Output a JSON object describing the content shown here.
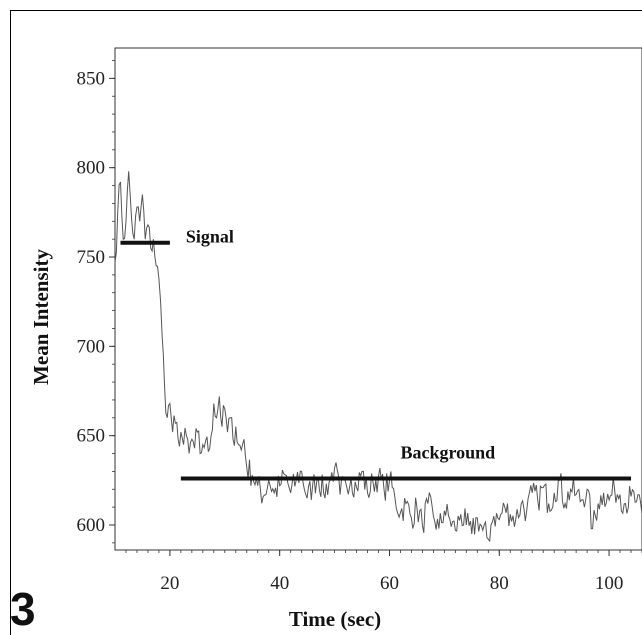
{
  "panel_label": "3",
  "chart_data": {
    "type": "line",
    "title": "",
    "xlabel": "Time (sec)",
    "ylabel": "Mean Intensity",
    "xlim": [
      10,
      106
    ],
    "ylim": [
      586,
      867
    ],
    "xticks": [
      "20",
      "40",
      "60",
      "80",
      "100"
    ],
    "yticks": [
      "600",
      "650",
      "700",
      "750",
      "800",
      "850"
    ],
    "grid": false,
    "legend": "none",
    "line_color": "#555555",
    "series": [
      {
        "values": [
          [
            10.0,
            747
          ],
          [
            10.5,
            775
          ],
          [
            11.0,
            792
          ],
          [
            11.5,
            760
          ],
          [
            12.0,
            770
          ],
          [
            12.5,
            798
          ],
          [
            13.0,
            772
          ],
          [
            13.5,
            760
          ],
          [
            14.0,
            778
          ],
          [
            14.5,
            770
          ],
          [
            15.0,
            785
          ],
          [
            15.5,
            760
          ],
          [
            16.0,
            768
          ],
          [
            16.5,
            755
          ],
          [
            17.0,
            760
          ],
          [
            17.5,
            745
          ],
          [
            18.0,
            738
          ],
          [
            18.3,
            725
          ],
          [
            18.6,
            705
          ],
          [
            19.0,
            680
          ],
          [
            19.5,
            660
          ],
          [
            20.0,
            668
          ],
          [
            20.5,
            652
          ],
          [
            21.0,
            657
          ],
          [
            21.5,
            648
          ],
          [
            22.0,
            652
          ],
          [
            22.5,
            645
          ],
          [
            23.0,
            650
          ],
          [
            23.5,
            640
          ],
          [
            24.0,
            648
          ],
          [
            24.5,
            643
          ],
          [
            25.0,
            652
          ],
          [
            25.5,
            640
          ],
          [
            26.0,
            645
          ],
          [
            26.5,
            647
          ],
          [
            27.0,
            641
          ],
          [
            27.5,
            650
          ],
          [
            28.0,
            668
          ],
          [
            28.5,
            660
          ],
          [
            29.0,
            672
          ],
          [
            29.5,
            655
          ],
          [
            30.0,
            665
          ],
          [
            30.5,
            652
          ],
          [
            31.0,
            660
          ],
          [
            31.5,
            648
          ],
          [
            32.0,
            655
          ],
          [
            32.5,
            645
          ],
          [
            33.0,
            642
          ],
          [
            33.5,
            648
          ],
          [
            34.0,
            632
          ],
          [
            35.0,
            628
          ],
          [
            36.0,
            622
          ],
          [
            37.0,
            616
          ],
          [
            38.0,
            625
          ],
          [
            39.0,
            618
          ],
          [
            40.0,
            622
          ],
          [
            41.0,
            628
          ],
          [
            42.0,
            618
          ],
          [
            43.0,
            625
          ],
          [
            44.0,
            630
          ],
          [
            45.0,
            615
          ],
          [
            46.0,
            622
          ],
          [
            47.0,
            627
          ],
          [
            48.0,
            618
          ],
          [
            49.0,
            624
          ],
          [
            50.0,
            632
          ],
          [
            51.0,
            617
          ],
          [
            52.0,
            624
          ],
          [
            53.0,
            626
          ],
          [
            54.0,
            621
          ],
          [
            55.0,
            630
          ],
          [
            56.0,
            618
          ],
          [
            57.0,
            624
          ],
          [
            58.0,
            627
          ],
          [
            59.0,
            620
          ],
          [
            60.0,
            625
          ],
          [
            61.0,
            615
          ],
          [
            62.0,
            607
          ],
          [
            63.0,
            612
          ],
          [
            64.0,
            604
          ],
          [
            65.0,
            610
          ],
          [
            66.0,
            600
          ],
          [
            67.0,
            612
          ],
          [
            68.0,
            605
          ],
          [
            69.0,
            598
          ],
          [
            70.0,
            608
          ],
          [
            71.0,
            603
          ],
          [
            72.0,
            597
          ],
          [
            73.0,
            606
          ],
          [
            74.0,
            600
          ],
          [
            75.0,
            595
          ],
          [
            76.0,
            604
          ],
          [
            77.0,
            597
          ],
          [
            78.0,
            592
          ],
          [
            78.5,
            600
          ],
          [
            79.0,
            605
          ],
          [
            80.0,
            603
          ],
          [
            81.0,
            610
          ],
          [
            82.0,
            606
          ],
          [
            83.0,
            603
          ],
          [
            84.0,
            612
          ],
          [
            85.0,
            608
          ],
          [
            86.0,
            618
          ],
          [
            87.0,
            614
          ],
          [
            88.0,
            621
          ],
          [
            89.0,
            612
          ],
          [
            90.0,
            618
          ],
          [
            91.0,
            625
          ],
          [
            92.0,
            612
          ],
          [
            93.0,
            620
          ],
          [
            94.0,
            617
          ],
          [
            95.0,
            614
          ],
          [
            96.0,
            620
          ],
          [
            97.0,
            598
          ],
          [
            98.0,
            612
          ],
          [
            99.0,
            618
          ],
          [
            100.0,
            614
          ],
          [
            101.0,
            620
          ],
          [
            102.0,
            617
          ],
          [
            103.0,
            612
          ],
          [
            104.0,
            616
          ],
          [
            105.0,
            613
          ],
          [
            106.0,
            606
          ]
        ]
      }
    ],
    "annotations": [
      {
        "label": "Signal",
        "x_start": 11,
        "x_end": 20,
        "y": 758
      },
      {
        "label": "Background",
        "x_start": 22,
        "x_end": 104,
        "y": 626
      }
    ]
  }
}
